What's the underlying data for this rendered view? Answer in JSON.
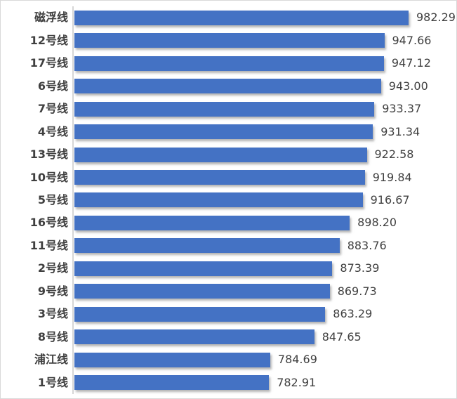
{
  "chart_data": {
    "type": "bar",
    "orientation": "horizontal",
    "title": "",
    "xlabel": "",
    "ylabel": "",
    "categories": [
      "磁浮线",
      "12号线",
      "17号线",
      "6号线",
      "7号线",
      "4号线",
      "13号线",
      "10号线",
      "5号线",
      "16号线",
      "11号线",
      "2号线",
      "9号线",
      "3号线",
      "8号线",
      "浦江线",
      "1号线"
    ],
    "values": [
      982.29,
      947.66,
      947.12,
      943.0,
      933.37,
      931.34,
      922.58,
      919.84,
      916.67,
      898.2,
      883.76,
      873.39,
      869.73,
      863.29,
      847.65,
      784.69,
      782.91
    ],
    "value_labels": [
      "982.29",
      "947.66",
      "947.12",
      "943.00",
      "933.37",
      "931.34",
      "922.58",
      "919.84",
      "916.67",
      "898.20",
      "883.76",
      "873.39",
      "869.73",
      "863.29",
      "847.65",
      "784.69",
      "782.91"
    ],
    "sort_order": "descending",
    "data_labels_position": "outside-end",
    "grid": false,
    "legend": false,
    "x_axis_ticks_visible": false,
    "x_axis_implied_range": [
      505,
      990
    ],
    "colors": {
      "bar": "#4472C4",
      "bar_shadow": "rgba(120,120,120,0.55)",
      "category_label": "#3F3F3F",
      "value_label": "#404040",
      "category_axis_line": "#D6D6D6",
      "frame_border": "#D9D9D9",
      "background": "#FFFFFF"
    }
  }
}
